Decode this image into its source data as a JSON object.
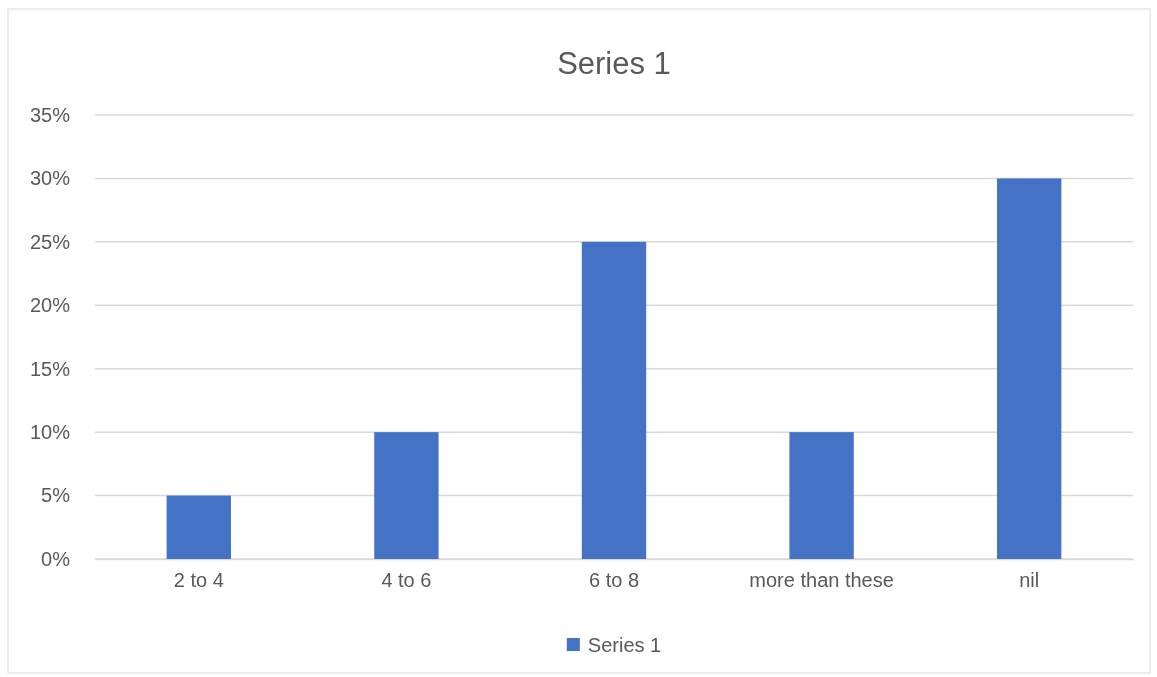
{
  "chart_data": {
    "type": "bar",
    "title": "Series 1",
    "categories": [
      "2 to 4",
      "4 to 6",
      "6 to 8",
      "more than these",
      "nil"
    ],
    "series": [
      {
        "name": "Series 1",
        "color": "#4472c4",
        "values": [
          5,
          10,
          25,
          10,
          30
        ]
      }
    ],
    "ylim": [
      0,
      35
    ],
    "yticks": [
      {
        "value": 0,
        "label": "0%"
      },
      {
        "value": 5,
        "label": "5%"
      },
      {
        "value": 10,
        "label": "10%"
      },
      {
        "value": 15,
        "label": "15%"
      },
      {
        "value": 20,
        "label": "20%"
      },
      {
        "value": 25,
        "label": "25%"
      },
      {
        "value": 30,
        "label": "30%"
      },
      {
        "value": 35,
        "label": "35%"
      }
    ],
    "grid": "y",
    "legend": "bottom"
  }
}
